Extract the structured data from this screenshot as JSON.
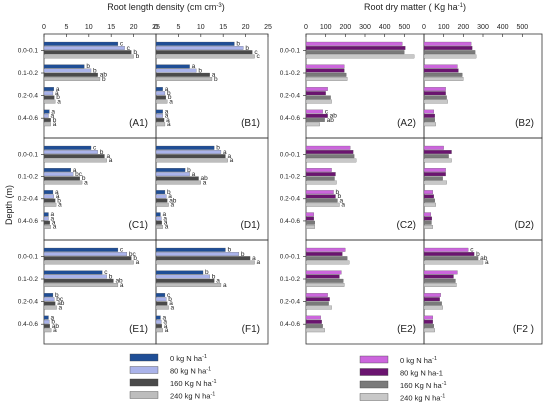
{
  "figure": {
    "left_title": "Root length density (cm cm",
    "left_title_sup": "-3",
    "left_title_end": ")",
    "right_title": "Root dry matter ( Kg ha",
    "right_title_sup": "-1",
    "right_title_end": ")",
    "y_axis_label": "Depth (m)"
  },
  "legend": {
    "left": [
      {
        "text": "0 kg N ha",
        "sup": "-1",
        "color": "#1f4e96"
      },
      {
        "text": "80 kg N ha",
        "sup": "-1",
        "color": "#aab3ea"
      },
      {
        "text": "160 Kg N ha",
        "sup": "-1",
        "color": "#4a4a4a"
      },
      {
        "text": "240 kg N ha",
        "sup": "-1",
        "color": "#bdbdbd"
      }
    ],
    "right": [
      {
        "text": "0 kg N ha",
        "sup": "-1",
        "color": "#cc66dd"
      },
      {
        "text": "80 kg N ha-1",
        "sup": "",
        "color": "#6b1470"
      },
      {
        "text": "160 Kg N ha",
        "sup": "-1",
        "color": "#7a7a7a"
      },
      {
        "text": "240 kg N ha",
        "sup": "-1",
        "color": "#c8c8c8"
      }
    ]
  },
  "chart_data": [
    {
      "type": "bar",
      "panel": "A1",
      "orientation": "horizontal",
      "categories": [
        "0.0-0.1",
        "0.1-0.2",
        "0.2-0.4",
        "0.4-0.6"
      ],
      "xlim": [
        0,
        25
      ],
      "xticks": [
        0,
        5,
        10,
        15,
        20,
        25
      ],
      "series": [
        {
          "values": [
            16.5,
            9,
            2.2,
            1.2
          ]
        },
        {
          "values": [
            18,
            10.5,
            2,
            1
          ]
        },
        {
          "values": [
            19.5,
            12,
            2.3,
            1.5
          ]
        },
        {
          "values": [
            20,
            12.5,
            2.5,
            1.5
          ]
        }
      ],
      "labels": [
        [
          "c",
          "b",
          "a",
          "a"
        ],
        [
          "c",
          "b",
          "a",
          "a"
        ],
        [
          "b",
          "ab",
          "b",
          "b"
        ],
        [
          "b",
          "b",
          "a",
          "a"
        ]
      ]
    },
    {
      "type": "bar",
      "panel": "B1",
      "orientation": "horizontal",
      "categories": [
        "0.0-0.1",
        "0.1-0.2",
        "0.2-0.4",
        "0.4-0.6"
      ],
      "xlim": [
        0,
        25
      ],
      "xticks": [
        0,
        5,
        10,
        15,
        20,
        25
      ],
      "series": [
        {
          "values": [
            17.5,
            7.5,
            1.5,
            1.5
          ]
        },
        {
          "values": [
            19.5,
            9,
            2,
            1.5
          ]
        },
        {
          "values": [
            21.5,
            12,
            2.2,
            1.8
          ]
        },
        {
          "values": [
            22,
            12.5,
            2.5,
            2
          ]
        }
      ],
      "labels": [
        [
          "b",
          "a",
          "a",
          "a"
        ],
        [
          "b",
          "b",
          "b",
          "a"
        ],
        [
          "c",
          "a",
          "b",
          "a"
        ],
        [
          "c",
          "b",
          "a",
          "a"
        ]
      ]
    },
    {
      "type": "bar",
      "panel": "C1",
      "orientation": "horizontal",
      "categories": [
        "0.0-0.1",
        "0.1-0.2",
        "0.2-0.4",
        "0.4-0.6"
      ],
      "xlim": [
        0,
        25
      ],
      "xticks": [
        0,
        5,
        10,
        15,
        20,
        25
      ],
      "series": [
        {
          "values": [
            10.5,
            6,
            2,
            1
          ]
        },
        {
          "values": [
            12,
            6.5,
            2.2,
            1
          ]
        },
        {
          "values": [
            13.5,
            8,
            2.5,
            1.3
          ]
        },
        {
          "values": [
            14,
            8.5,
            2.7,
            1.5
          ]
        }
      ],
      "labels": [
        [
          "c",
          "a",
          "a",
          "a"
        ],
        [
          "b",
          "bc",
          "a",
          "a"
        ],
        [
          "a",
          "b",
          "b",
          "a"
        ],
        [
          "a",
          "a",
          "a",
          "a"
        ]
      ]
    },
    {
      "type": "bar",
      "panel": "D1",
      "orientation": "horizontal",
      "categories": [
        "0.0-0.1",
        "0.1-0.2",
        "0.2-0.4",
        "0.4-0.6"
      ],
      "xlim": [
        0,
        25
      ],
      "xticks": [
        0,
        5,
        10,
        15,
        20,
        25
      ],
      "series": [
        {
          "values": [
            13,
            6.5,
            2,
            1
          ]
        },
        {
          "values": [
            14.5,
            7.5,
            2.3,
            1.2
          ]
        },
        {
          "values": [
            15.5,
            9.5,
            2.5,
            1.3
          ]
        },
        {
          "values": [
            16,
            10,
            2.8,
            1.5
          ]
        }
      ],
      "labels": [
        [
          "b",
          "b",
          "b",
          "a"
        ],
        [
          "a",
          "a",
          "a",
          "a"
        ],
        [
          "a",
          "ab",
          "ab",
          "a"
        ],
        [
          "a",
          "a",
          "a",
          "a"
        ]
      ]
    },
    {
      "type": "bar",
      "panel": "E1",
      "orientation": "horizontal",
      "categories": [
        "0.0-0.1",
        "0.1-0.2",
        "0.2-0.4",
        "0.4-0.6"
      ],
      "xlim": [
        0,
        25
      ],
      "xticks": [
        0,
        5,
        10,
        15,
        20,
        25
      ],
      "series": [
        {
          "values": [
            16.5,
            13,
            2,
            1
          ]
        },
        {
          "values": [
            18.5,
            14,
            2.3,
            1.2
          ]
        },
        {
          "values": [
            19.5,
            15.5,
            2.5,
            1.3
          ]
        },
        {
          "values": [
            20,
            16.5,
            2.8,
            1.6
          ]
        }
      ],
      "labels": [
        [
          "c",
          "c",
          "b",
          "a"
        ],
        [
          "bc",
          "b",
          "bc",
          "b"
        ],
        [
          "b",
          "ab",
          "ab",
          "ab"
        ],
        [
          "a",
          "a",
          "a",
          "a"
        ]
      ]
    },
    {
      "type": "bar",
      "panel": "F1",
      "orientation": "horizontal",
      "categories": [
        "0.0-0.1",
        "0.1-0.2",
        "0.2-0.4",
        "0.4-0.6"
      ],
      "xlim": [
        0,
        25
      ],
      "xticks": [
        0,
        5,
        10,
        15,
        20,
        25
      ],
      "series": [
        {
          "values": [
            15.5,
            10.5,
            2,
            1
          ]
        },
        {
          "values": [
            18.5,
            12,
            2.3,
            1.2
          ]
        },
        {
          "values": [
            21,
            13,
            2.5,
            1.3
          ]
        },
        {
          "values": [
            22,
            14.5,
            2.8,
            1.5
          ]
        }
      ],
      "labels": [
        [
          "b",
          "b",
          "c",
          "a"
        ],
        [
          "b",
          "b",
          "b",
          "a"
        ],
        [
          "a",
          "a",
          "a",
          "a"
        ],
        [
          "a",
          "a",
          "a",
          "a"
        ]
      ]
    },
    {
      "type": "bar",
      "panel": "A2",
      "orientation": "horizontal",
      "categories": [
        "0.0-0.1",
        "0.1-0.2",
        "0.2-0.4",
        "0.4-0.6"
      ],
      "xlim": [
        0,
        600
      ],
      "xticks": [
        0,
        100,
        200,
        300,
        400,
        500
      ],
      "series": [
        {
          "values": [
            490,
            195,
            110,
            85
          ]
        },
        {
          "values": [
            505,
            195,
            100,
            110
          ]
        },
        {
          "values": [
            500,
            205,
            125,
            95
          ]
        },
        {
          "values": [
            550,
            210,
            130,
            70
          ]
        }
      ],
      "labels": [
        [
          "",
          "",
          "",
          "c"
        ],
        [
          "",
          "",
          "",
          "ab"
        ],
        [
          "",
          "",
          "",
          "ab"
        ],
        [
          "",
          "",
          "",
          ""
        ]
      ]
    },
    {
      "type": "bar",
      "panel": "B2",
      "orientation": "horizontal",
      "categories": [
        "0.0-0.1",
        "0.1-0.2",
        "0.2-0.4",
        "0.4-0.6"
      ],
      "xlim": [
        0,
        600
      ],
      "xticks": [
        0,
        100,
        200,
        300,
        400,
        500
      ],
      "series": [
        {
          "values": [
            240,
            170,
            110,
            50
          ]
        },
        {
          "values": [
            245,
            175,
            110,
            55
          ]
        },
        {
          "values": [
            260,
            195,
            115,
            55
          ]
        },
        {
          "values": [
            265,
            200,
            120,
            60
          ]
        }
      ],
      "labels": [
        [
          "",
          "",
          "",
          ""
        ],
        [
          "",
          "",
          "",
          ""
        ],
        [
          "",
          "",
          "",
          ""
        ],
        [
          "",
          "",
          "",
          ""
        ]
      ]
    },
    {
      "type": "bar",
      "panel": "C2",
      "orientation": "horizontal",
      "categories": [
        "0.0-0.1",
        "0.1-0.2",
        "0.2-0.4",
        "0.4-0.6"
      ],
      "xlim": [
        0,
        600
      ],
      "xticks": [
        0,
        100,
        200,
        300,
        400,
        500
      ],
      "series": [
        {
          "values": [
            225,
            130,
            140,
            40
          ]
        },
        {
          "values": [
            240,
            150,
            150,
            40
          ]
        },
        {
          "values": [
            245,
            145,
            160,
            45
          ]
        },
        {
          "values": [
            255,
            155,
            170,
            45
          ]
        }
      ],
      "labels": [
        [
          "",
          "",
          "b",
          ""
        ],
        [
          "",
          "",
          "b",
          ""
        ],
        [
          "",
          "",
          "a",
          ""
        ],
        [
          "",
          "",
          "a",
          ""
        ]
      ]
    },
    {
      "type": "bar",
      "panel": "D2",
      "orientation": "horizontal",
      "categories": [
        "0.0-0.1",
        "0.1-0.2",
        "0.2-0.4",
        "0.4-0.6"
      ],
      "xlim": [
        0,
        600
      ],
      "xticks": [
        0,
        100,
        200,
        300,
        400,
        500
      ],
      "series": [
        {
          "values": [
            100,
            110,
            45,
            35
          ]
        },
        {
          "values": [
            140,
            110,
            50,
            40
          ]
        },
        {
          "values": [
            125,
            95,
            55,
            38
          ]
        },
        {
          "values": [
            140,
            115,
            60,
            45
          ]
        }
      ],
      "labels": [
        [
          "",
          "",
          "",
          ""
        ],
        [
          "",
          "",
          "",
          ""
        ],
        [
          "",
          "",
          "",
          ""
        ],
        [
          "",
          "",
          "",
          ""
        ]
      ]
    },
    {
      "type": "bar",
      "panel": "E2",
      "orientation": "horizontal",
      "categories": [
        "0.0-0.1",
        "0.1-0.2",
        "0.2-0.4",
        "0.4-0.6"
      ],
      "xlim": [
        0,
        600
      ],
      "xticks": [
        0,
        100,
        200,
        300,
        400,
        500
      ],
      "series": [
        {
          "values": [
            200,
            180,
            110,
            75
          ]
        },
        {
          "values": [
            185,
            170,
            120,
            80
          ]
        },
        {
          "values": [
            210,
            190,
            115,
            85
          ]
        },
        {
          "values": [
            220,
            195,
            130,
            95
          ]
        }
      ],
      "labels": [
        [
          "",
          "",
          "",
          ""
        ],
        [
          "",
          "",
          "",
          ""
        ],
        [
          "",
          "",
          "",
          ""
        ],
        [
          "",
          "",
          "",
          ""
        ]
      ]
    },
    {
      "type": "bar",
      "panel": "F2",
      "orientation": "horizontal",
      "categories": [
        "0.0-0.1",
        "0.1-0.2",
        "0.2-0.4",
        "0.4-0.6"
      ],
      "xlim": [
        0,
        600
      ],
      "xticks": [
        0,
        100,
        200,
        300,
        400,
        500
      ],
      "series": [
        {
          "values": [
            225,
            170,
            85,
            45
          ]
        },
        {
          "values": [
            255,
            150,
            80,
            45
          ]
        },
        {
          "values": [
            275,
            160,
            90,
            50
          ]
        },
        {
          "values": [
            300,
            165,
            95,
            55
          ]
        }
      ],
      "labels": [
        [
          "c",
          "",
          "",
          ""
        ],
        [
          "b",
          "",
          "",
          ""
        ],
        [
          "ab",
          "",
          "",
          ""
        ],
        [
          "a",
          "",
          "",
          ""
        ]
      ]
    }
  ]
}
